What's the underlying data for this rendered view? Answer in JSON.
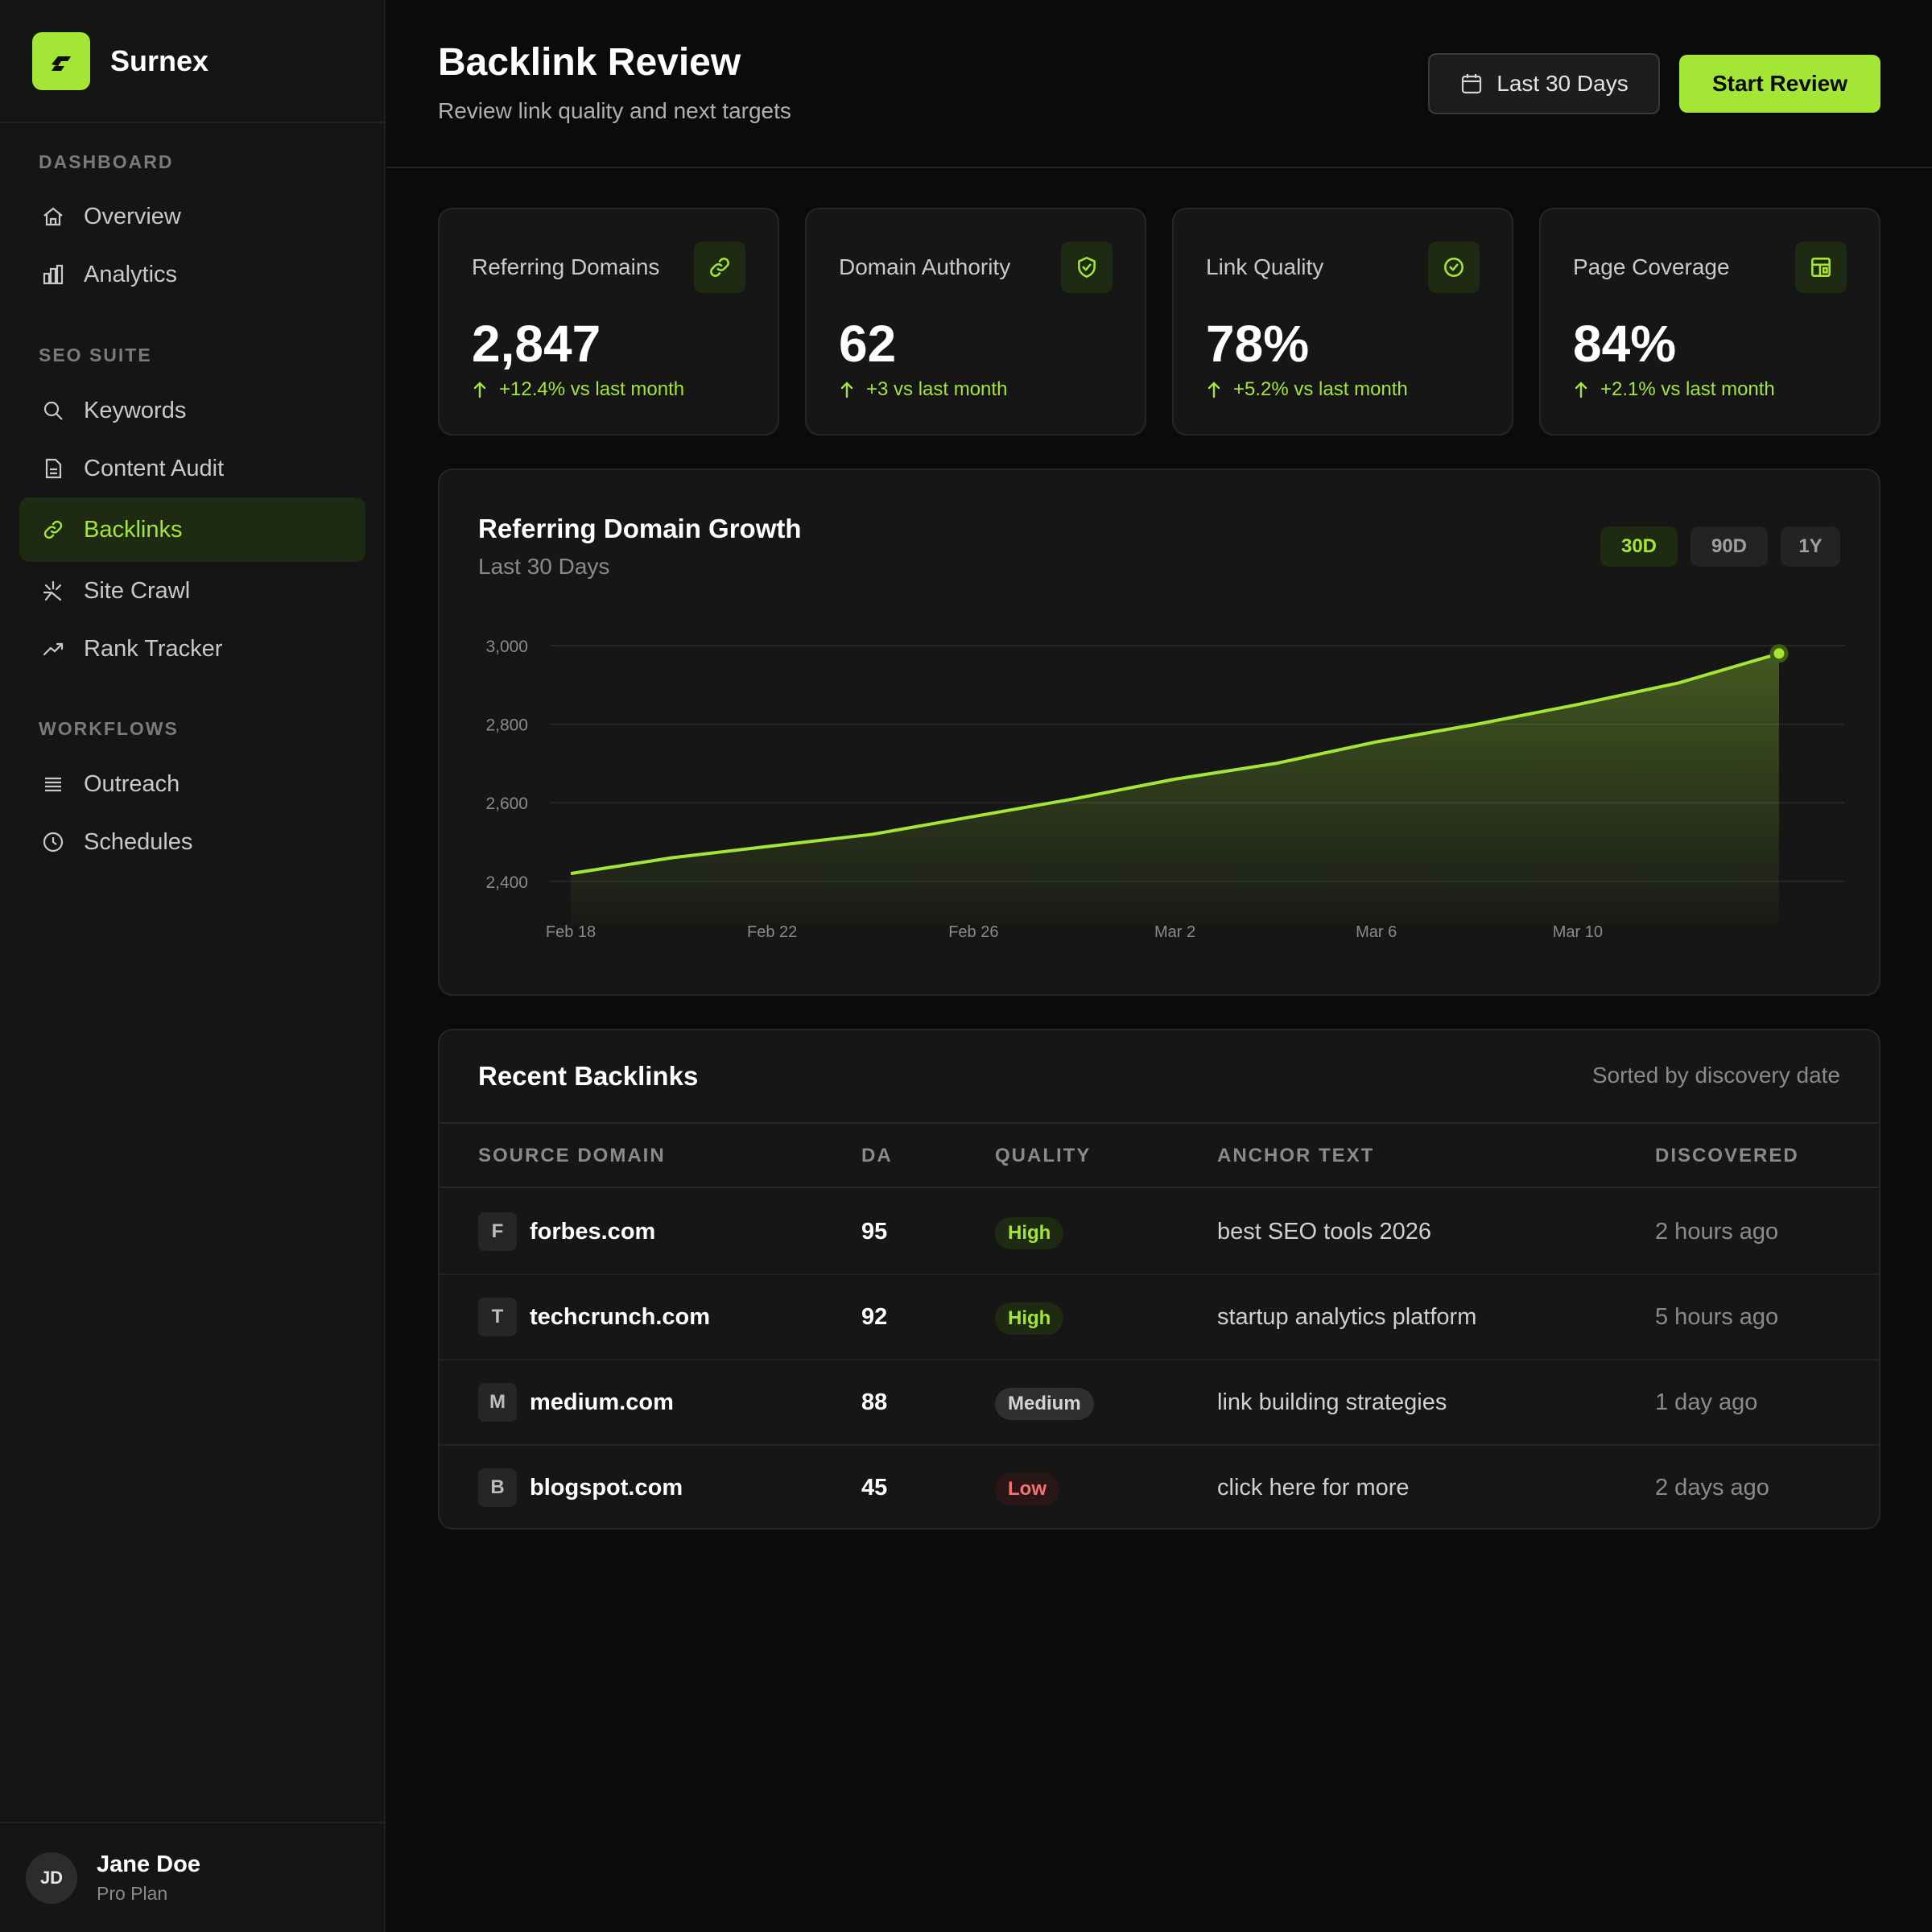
{
  "app": {
    "name": "Surnex"
  },
  "sidebar": {
    "sections": [
      {
        "title": "DASHBOARD",
        "items": [
          {
            "label": "Overview",
            "icon": "home-icon"
          },
          {
            "label": "Analytics",
            "icon": "bar-chart-icon"
          }
        ]
      },
      {
        "title": "SEO SUITE",
        "items": [
          {
            "label": "Keywords",
            "icon": "search-icon"
          },
          {
            "label": "Content Audit",
            "icon": "document-icon"
          },
          {
            "label": "Backlinks",
            "icon": "link-icon",
            "active": true
          },
          {
            "label": "Site Crawl",
            "icon": "crawl-icon"
          },
          {
            "label": "Rank Tracker",
            "icon": "trend-icon"
          }
        ]
      },
      {
        "title": "WORKFLOWS",
        "items": [
          {
            "label": "Outreach",
            "icon": "list-icon"
          },
          {
            "label": "Schedules",
            "icon": "clock-icon"
          }
        ]
      }
    ],
    "user": {
      "initials": "JD",
      "name": "Jane Doe",
      "plan": "Pro Plan"
    }
  },
  "header": {
    "title": "Backlink Review",
    "subtitle": "Review link quality and next targets",
    "range_label": "Last 30 Days",
    "start_label": "Start Review"
  },
  "stats": [
    {
      "label": "Referring Domains",
      "value": "2,847",
      "delta": "+12.4% vs last month",
      "icon": "link-icon"
    },
    {
      "label": "Domain Authority",
      "value": "62",
      "delta": "+3 vs last month",
      "icon": "shield-icon"
    },
    {
      "label": "Link Quality",
      "value": "78%",
      "delta": "+5.2% vs last month",
      "icon": "check-circle-icon"
    },
    {
      "label": "Page Coverage",
      "value": "84%",
      "delta": "+2.1% vs last month",
      "icon": "layout-icon"
    }
  ],
  "chart": {
    "title": "Referring Domain Growth",
    "subtitle": "Last 30 Days",
    "ranges": [
      "30D",
      "90D",
      "1Y"
    ],
    "active_range": "30D"
  },
  "chart_data": {
    "type": "area",
    "title": "Referring Domain Growth",
    "x": [
      "Feb 18",
      "Feb 20",
      "Feb 22",
      "Feb 24",
      "Feb 26",
      "Feb 28",
      "Mar 2",
      "Mar 4",
      "Mar 6",
      "Mar 8",
      "Mar 10",
      "Mar 12",
      "Mar 14"
    ],
    "x_ticks": [
      "Feb 18",
      "Feb 22",
      "Feb 26",
      "Mar 2",
      "Mar 6",
      "Mar 10"
    ],
    "series": [
      {
        "values": [
          2420,
          2460,
          2490,
          2520,
          2565,
          2610,
          2660,
          2700,
          2755,
          2800,
          2850,
          2905,
          2980
        ]
      }
    ],
    "y_ticks": [
      2400,
      2600,
      2800,
      3000
    ],
    "ylim": [
      2330,
      3000
    ],
    "accent": "#a3e635",
    "grid": true
  },
  "table": {
    "title": "Recent Backlinks",
    "note": "Sorted by discovery date",
    "columns": [
      "SOURCE DOMAIN",
      "DA",
      "QUALITY",
      "ANCHOR TEXT",
      "DISCOVERED"
    ],
    "rows": [
      {
        "initial": "F",
        "domain": "forbes.com",
        "da": "95",
        "quality": "High",
        "level": "high",
        "anchor": "best SEO tools 2026",
        "discovered": "2 hours ago"
      },
      {
        "initial": "T",
        "domain": "techcrunch.com",
        "da": "92",
        "quality": "High",
        "level": "high",
        "anchor": "startup analytics platform",
        "discovered": "5 hours ago"
      },
      {
        "initial": "M",
        "domain": "medium.com",
        "da": "88",
        "quality": "Medium",
        "level": "medium",
        "anchor": "link building strategies",
        "discovered": "1 day ago"
      },
      {
        "initial": "B",
        "domain": "blogspot.com",
        "da": "45",
        "quality": "Low",
        "level": "low",
        "anchor": "click here for more",
        "discovered": "2 days ago"
      }
    ]
  }
}
